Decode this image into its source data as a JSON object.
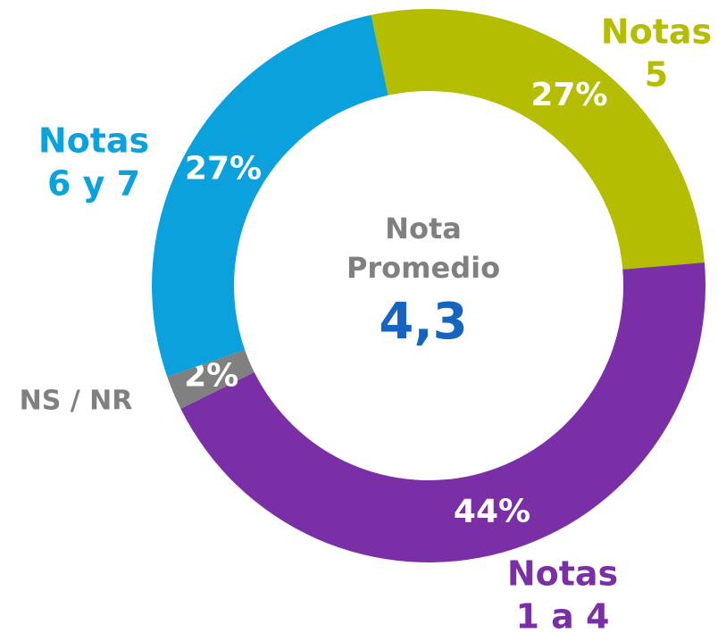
{
  "chart_data": {
    "type": "donut",
    "categories": [
      [
        "Notas",
        "5"
      ],
      [
        "Notas",
        "1 a 4"
      ],
      [
        "NS / NR"
      ],
      [
        "Notas",
        "6 y 7"
      ]
    ],
    "values": [
      27,
      44,
      2,
      27
    ],
    "value_labels": [
      "27%",
      "44%",
      "2%",
      "27%"
    ],
    "colors": [
      "#b5bd00",
      "#7b2fa6",
      "#808080",
      "#0aa1dd"
    ],
    "center_label": [
      "Nota",
      "Promedio"
    ],
    "center_value": "4,3"
  }
}
